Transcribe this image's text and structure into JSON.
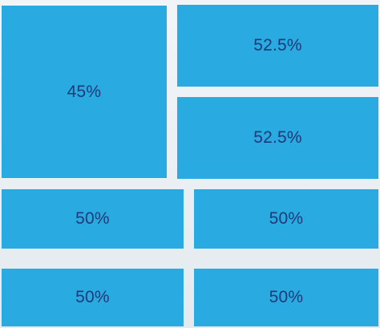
{
  "tiles": [
    {
      "label": "45%"
    },
    {
      "label": "52.5%"
    },
    {
      "label": "52.5%"
    },
    {
      "label": "50%"
    },
    {
      "label": "50%"
    },
    {
      "label": "50%"
    },
    {
      "label": "50%"
    }
  ],
  "colors": {
    "tile_fill": "#29aae1",
    "label_text": "#1e3a78",
    "background": "#e9eef2"
  }
}
